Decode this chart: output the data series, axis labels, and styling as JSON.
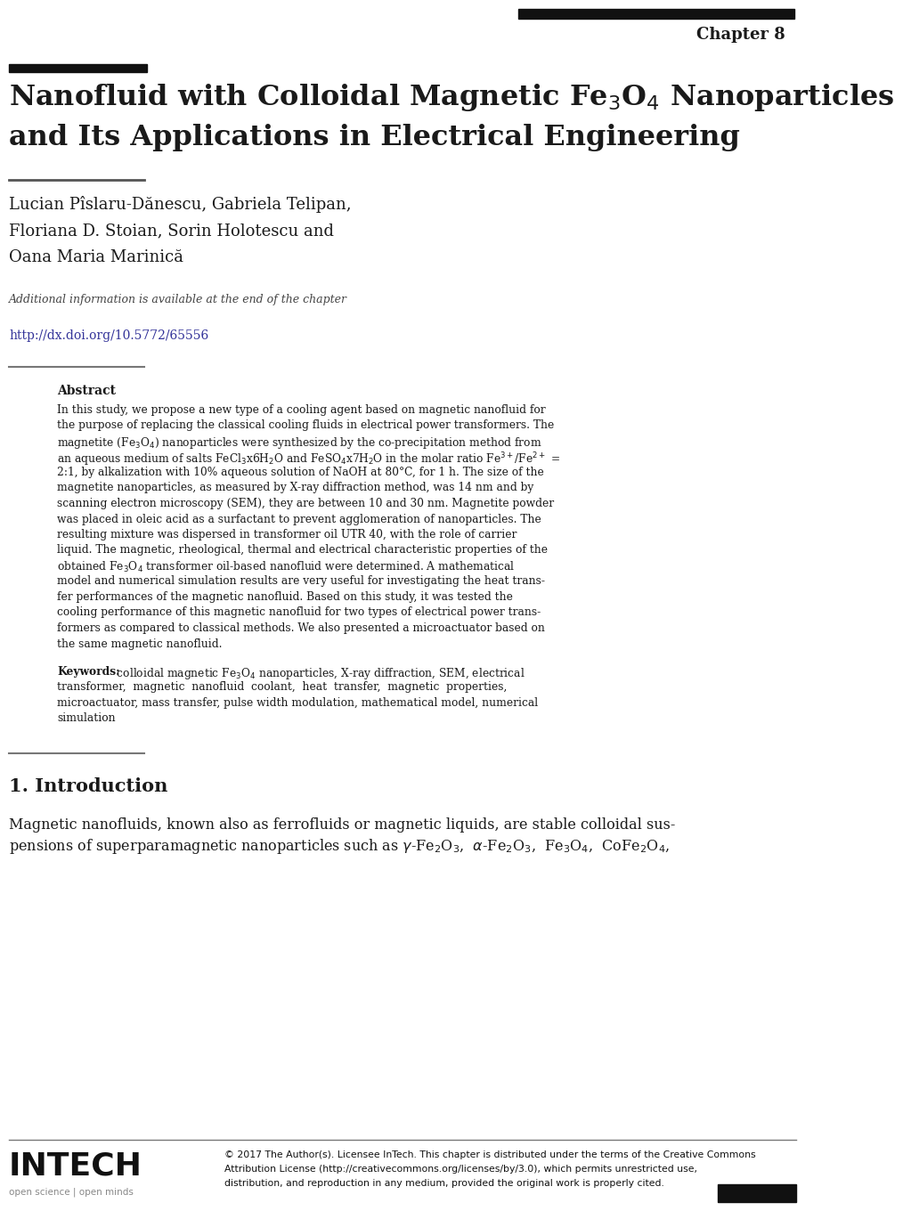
{
  "chapter_label": "Chapter 8",
  "title_line1": "Nanofluid with Colloidal Magnetic Fe$_3$O$_4$ Nanoparticles",
  "title_line2": "and Its Applications in Electrical Engineering",
  "authors_line1": "Lucian Pîslaru-Dănescu, Gabriela Telipan,",
  "authors_line2": "Floriana D. Stoian, Sorin Holotescu and",
  "authors_line3": "Oana Maria Marinică",
  "additional_info": "Additional information is available at the end of the chapter",
  "doi": "http://dx.doi.org/10.5772/65556",
  "abstract_label": "Abstract",
  "abstract_lines": [
    "In this study, we propose a new type of a cooling agent based on magnetic nanofluid for",
    "the purpose of replacing the classical cooling fluids in electrical power transformers. The",
    "magnetite (Fe$_3$O$_4$) nanoparticles were synthesized by the co-precipitation method from",
    "an aqueous medium of salts FeCl$_3$x6H$_2$O and FeSO$_4$x7H$_2$O in the molar ratio Fe$^{3+}$/Fe$^{2+}$ =",
    "2:1, by alkalization with 10% aqueous solution of NaOH at 80°C, for 1 h. The size of the",
    "magnetite nanoparticles, as measured by X-ray diffraction method, was 14 nm and by",
    "scanning electron microscopy (SEM), they are between 10 and 30 nm. Magnetite powder",
    "was placed in oleic acid as a surfactant to prevent agglomeration of nanoparticles. The",
    "resulting mixture was dispersed in transformer oil UTR 40, with the role of carrier",
    "liquid. The magnetic, rheological, thermal and electrical characteristic properties of the",
    "obtained Fe$_3$O$_4$ transformer oil-based nanofluid were determined. A mathematical",
    "model and numerical simulation results are very useful for investigating the heat trans-",
    "fer performances of the magnetic nanofluid. Based on this study, it was tested the",
    "cooling performance of this magnetic nanofluid for two types of electrical power trans-",
    "formers as compared to classical methods. We also presented a microactuator based on",
    "the same magnetic nanofluid."
  ],
  "keywords_bold": "Keywords:",
  "keywords_lines": [
    " colloidal magnetic Fe$_3$O$_4$ nanoparticles, X-ray diffraction, SEM, electrical",
    "transformer,  magnetic  nanofluid  coolant,  heat  transfer,  magnetic  properties,",
    "microactuator, mass transfer, pulse width modulation, mathematical model, numerical",
    "simulation"
  ],
  "intro_heading": "1. Introduction",
  "intro_lines": [
    "Magnetic nanofluids, known also as ferrofluids or magnetic liquids, are stable colloidal sus-",
    "pensions of superparamagnetic nanoparticles such as $\\gamma$-Fe$_2$O$_3$,  $\\alpha$-Fe$_2$O$_3$,  Fe$_3$O$_4$,  CoFe$_2$O$_4$,"
  ],
  "intech_logo": "INTECH",
  "intech_sub": "open science | open minds",
  "footer_lines": [
    "© 2017 The Author(s). Licensee InTech. This chapter is distributed under the terms of the Creative Commons",
    "Attribution License (http://creativecommons.org/licenses/by/3.0), which permits unrestricted use,",
    "distribution, and reproduction in any medium, provided the original work is properly cited."
  ],
  "bg_color": "#ffffff"
}
